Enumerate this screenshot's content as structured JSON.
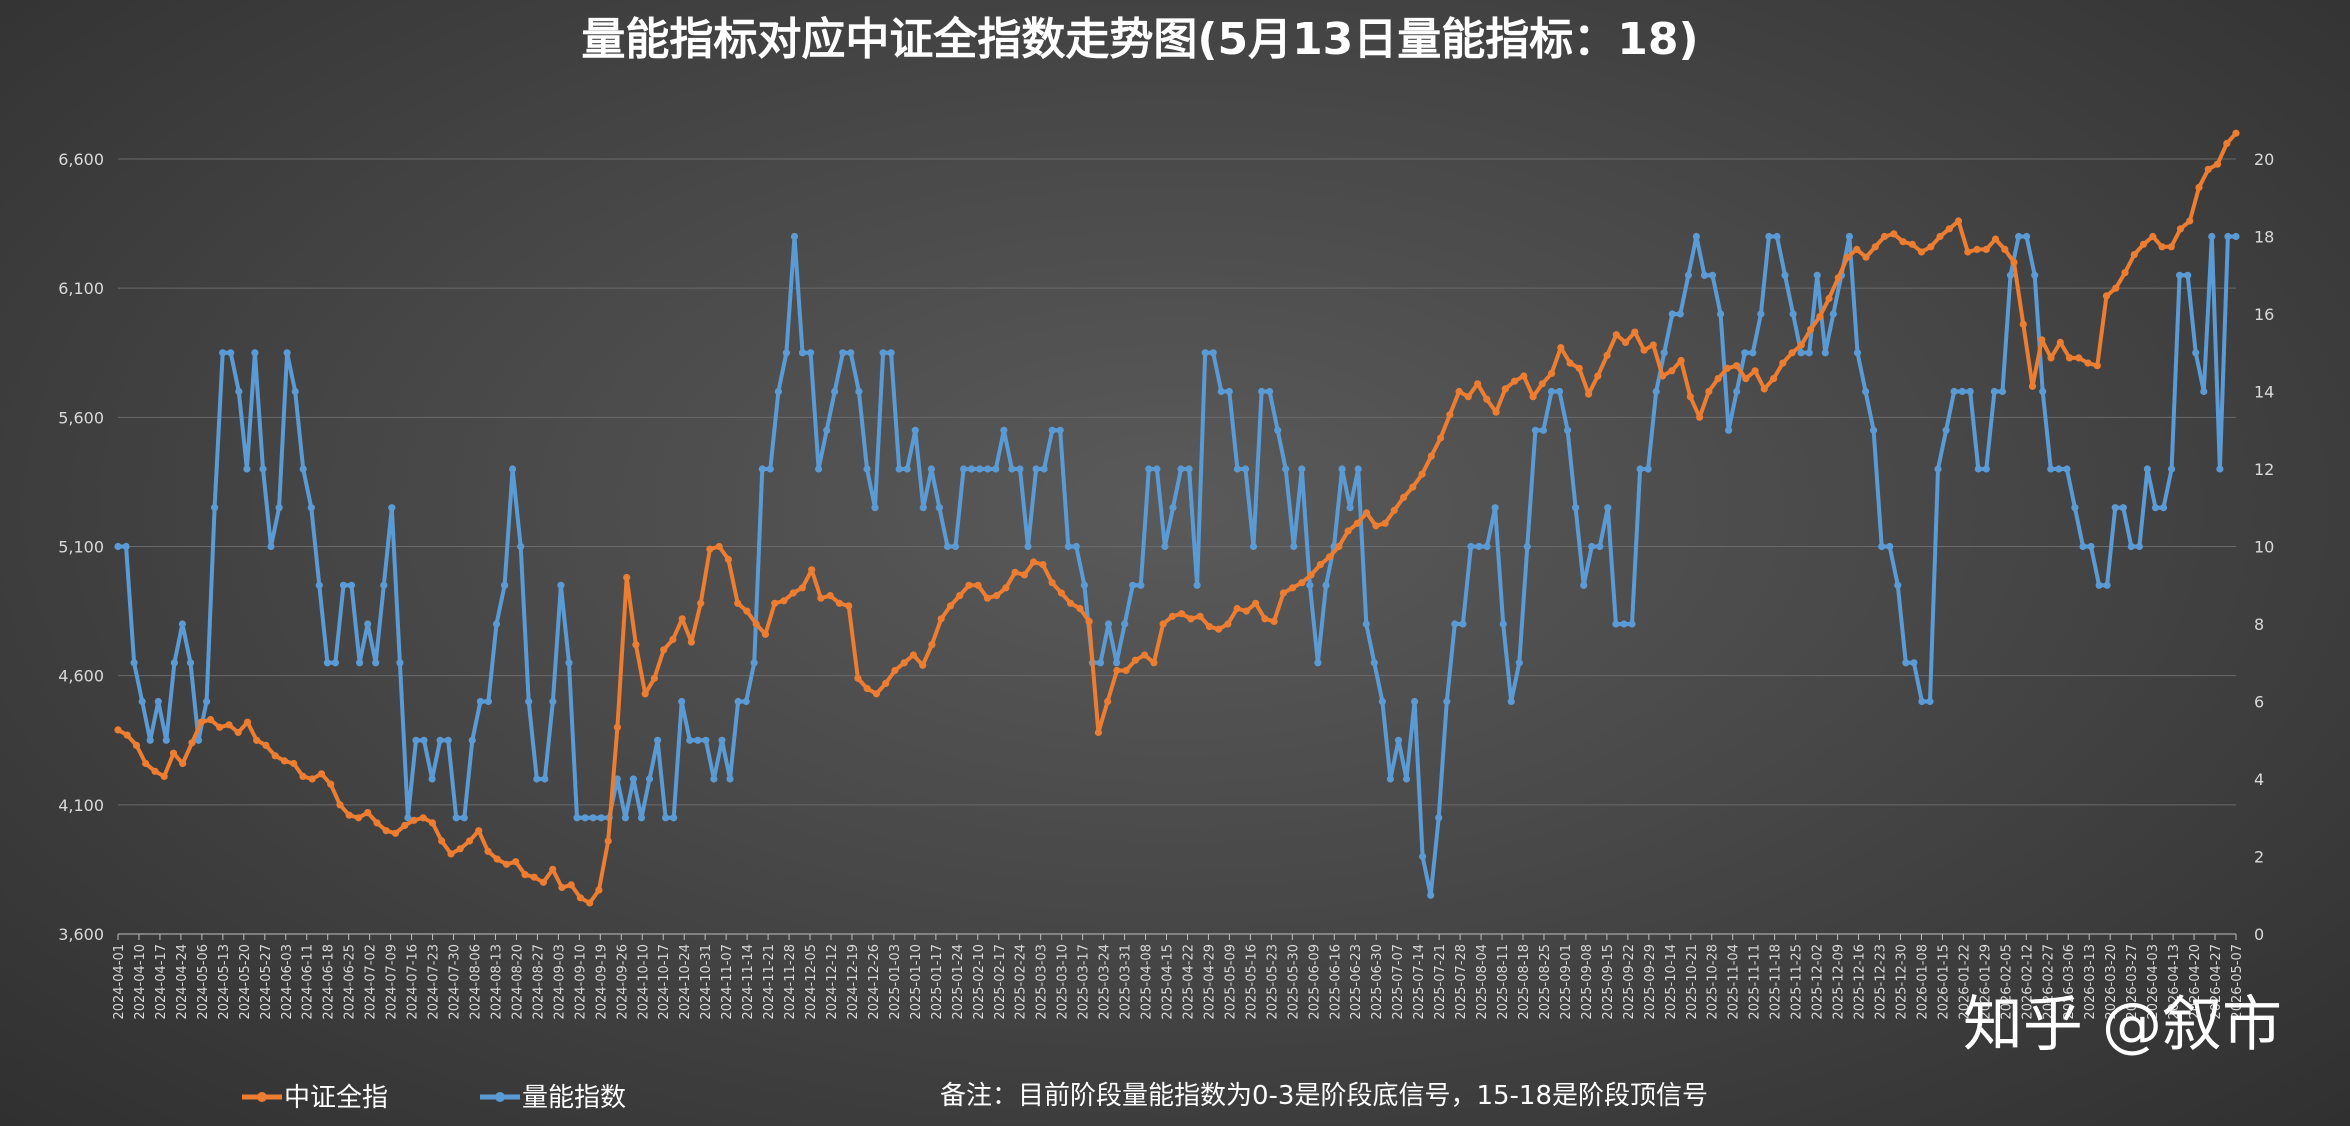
{
  "chart_data": {
    "type": "line",
    "title": "量能指标对应中证全指数走势图(5月13日量能指标：18)",
    "note": "备注：目前阶段量能指数为0-3是阶段底信号，15-18是阶段顶信号",
    "watermark": "知乎 @叙市",
    "legend_position": "bottom-left",
    "grid": true,
    "y_left": {
      "range": [
        3600,
        6600
      ],
      "ticks": [
        "3,600",
        "4,100",
        "4,600",
        "5,100",
        "5,600",
        "6,100",
        "6,600"
      ],
      "max": 6600,
      "min": 3600
    },
    "y_right": {
      "range": [
        0,
        20
      ],
      "ticks": [
        "0",
        "2",
        "4",
        "6",
        "8",
        "10",
        "12",
        "14",
        "16",
        "18",
        "20"
      ],
      "max": 20,
      "min": 0
    },
    "x_labels": [
      "2024-04-01",
      "2024-04-10",
      "2024-04-17",
      "2024-04-24",
      "2024-05-06",
      "2024-05-13",
      "2024-05-20",
      "2024-05-27",
      "2024-06-03",
      "2024-06-11",
      "2024-06-18",
      "2024-06-25",
      "2024-07-02",
      "2024-07-09",
      "2024-07-16",
      "2024-07-23",
      "2024-07-30",
      "2024-08-06",
      "2024-08-13",
      "2024-08-20",
      "2024-08-27",
      "2024-09-03",
      "2024-09-10",
      "2024-09-19",
      "2024-09-26",
      "2024-10-10",
      "2024-10-17",
      "2024-10-24",
      "2024-10-31",
      "2024-11-07",
      "2024-11-14",
      "2024-11-21",
      "2024-11-28",
      "2024-12-05",
      "2024-12-12",
      "2024-12-19",
      "2024-12-26",
      "2025-01-03",
      "2025-01-10",
      "2025-01-17",
      "2025-01-24",
      "2025-02-10",
      "2025-02-17",
      "2025-02-24",
      "2025-03-03",
      "2025-03-10",
      "2025-03-17",
      "2025-03-24",
      "2025-03-31",
      "2025-04-08",
      "2025-04-15",
      "2025-04-22",
      "2025-04-29",
      "2025-05-09",
      "2025-05-16",
      "2025-05-23",
      "2025-05-30",
      "2025-06-09",
      "2025-06-16",
      "2025-06-23",
      "2025-06-30",
      "2025-07-07",
      "2025-07-14",
      "2025-07-21",
      "2025-07-28",
      "2025-08-04",
      "2025-08-11",
      "2025-08-18",
      "2025-08-25",
      "2025-09-01",
      "2025-09-08",
      "2025-09-15",
      "2025-09-22",
      "2025-09-29",
      "2025-10-14",
      "2025-10-21",
      "2025-10-28",
      "2025-11-04",
      "2025-11-11",
      "2025-11-18",
      "2025-11-25",
      "2025-12-02",
      "2025-12-09",
      "2025-12-16",
      "2025-12-23",
      "2025-12-30",
      "2026-01-08",
      "2026-01-15",
      "2026-01-22",
      "2026-01-29",
      "2026-02-05",
      "2026-02-12",
      "2026-02-27",
      "2026-03-06",
      "2026-03-13",
      "2026-03-20",
      "2026-03-27",
      "2026-04-03",
      "2026-04-13",
      "2026-04-20",
      "2026-04-27",
      "2026-05-07"
    ],
    "series": [
      {
        "name": "中证全指",
        "axis": "left",
        "color": "#ed7d31",
        "values": [
          4390,
          4370,
          4330,
          4260,
          4230,
          4210,
          4300,
          4260,
          4340,
          4420,
          4430,
          4400,
          4410,
          4380,
          4420,
          4350,
          4330,
          4290,
          4270,
          4260,
          4210,
          4200,
          4220,
          4180,
          4100,
          4060,
          4050,
          4070,
          4030,
          4000,
          3990,
          4020,
          4040,
          4050,
          4030,
          3960,
          3910,
          3930,
          3960,
          4000,
          3920,
          3890,
          3870,
          3880,
          3830,
          3820,
          3800,
          3850,
          3780,
          3790,
          3740,
          3720,
          3770,
          3960,
          4400,
          4980,
          4720,
          4530,
          4590,
          4700,
          4740,
          4820,
          4730,
          4880,
          5090,
          5100,
          5050,
          4880,
          4850,
          4800,
          4760,
          4880,
          4890,
          4920,
          4940,
          5010,
          4900,
          4910,
          4880,
          4870,
          4590,
          4550,
          4530,
          4570,
          4620,
          4650,
          4680,
          4640,
          4720,
          4820,
          4870,
          4910,
          4950,
          4950,
          4900,
          4910,
          4940,
          5000,
          4990,
          5040,
          5030,
          4960,
          4920,
          4880,
          4860,
          4810,
          4380,
          4500,
          4620,
          4620,
          4660,
          4680,
          4650,
          4800,
          4830,
          4840,
          4820,
          4830,
          4790,
          4780,
          4800,
          4860,
          4850,
          4880,
          4820,
          4810,
          4920,
          4940,
          4960,
          4990,
          5030,
          5060,
          5100,
          5160,
          5190,
          5230,
          5180,
          5190,
          5240,
          5290,
          5330,
          5380,
          5450,
          5520,
          5610,
          5700,
          5680,
          5730,
          5670,
          5620,
          5710,
          5740,
          5760,
          5680,
          5730,
          5770,
          5870,
          5810,
          5790,
          5690,
          5760,
          5840,
          5920,
          5890,
          5930,
          5860,
          5880,
          5760,
          5780,
          5820,
          5680,
          5600,
          5700,
          5750,
          5790,
          5800,
          5750,
          5780,
          5710,
          5750,
          5810,
          5850,
          5880,
          5940,
          5990,
          6060,
          6140,
          6220,
          6250,
          6220,
          6260,
          6300,
          6310,
          6280,
          6270,
          6240,
          6260,
          6300,
          6330,
          6360,
          6240,
          6250,
          6250,
          6290,
          6250,
          6200,
          5960,
          5720,
          5900,
          5830,
          5890,
          5830,
          5830,
          5810,
          5800,
          6070,
          6100,
          6160,
          6230,
          6270,
          6300,
          6260,
          6260,
          6330,
          6360,
          6490,
          6560,
          6580,
          6660,
          6700
        ]
      },
      {
        "name": "量能指数",
        "axis": "right",
        "color": "#5b9bd5",
        "values": [
          10,
          10,
          7,
          6,
          5,
          6,
          5,
          7,
          8,
          7,
          5,
          6,
          11,
          15,
          15,
          14,
          12,
          15,
          12,
          10,
          11,
          15,
          14,
          12,
          11,
          9,
          7,
          7,
          9,
          9,
          7,
          8,
          7,
          9,
          11,
          7,
          3,
          5,
          5,
          4,
          5,
          5,
          3,
          3,
          5,
          6,
          6,
          8,
          9,
          12,
          10,
          6,
          4,
          4,
          6,
          9,
          7,
          3,
          3,
          3,
          3,
          3,
          4,
          3,
          4,
          3,
          4,
          5,
          3,
          3,
          6,
          5,
          5,
          5,
          4,
          5,
          4,
          6,
          6,
          7,
          12,
          12,
          14,
          15,
          18,
          15,
          15,
          12,
          13,
          14,
          15,
          15,
          14,
          12,
          11,
          15,
          15,
          12,
          12,
          13,
          11,
          12,
          11,
          10,
          10,
          12,
          12,
          12,
          12,
          12,
          13,
          12,
          12,
          10,
          12,
          12,
          13,
          13,
          10,
          10,
          9,
          7,
          7,
          8,
          7,
          8,
          9,
          9,
          12,
          12,
          10,
          11,
          12,
          12,
          9,
          15,
          15,
          14,
          14,
          12,
          12,
          10,
          14,
          14,
          13,
          12,
          10,
          12,
          9,
          7,
          9,
          10,
          12,
          11,
          12,
          8,
          7,
          6,
          4,
          5,
          4,
          6,
          2,
          1,
          3,
          6,
          8,
          8,
          10,
          10,
          10,
          11,
          8,
          6,
          7,
          10,
          13,
          13,
          14,
          14,
          13,
          11,
          9,
          10,
          10,
          11,
          8,
          8,
          8,
          12,
          12,
          14,
          15,
          16,
          16,
          17,
          18,
          17,
          17,
          16,
          13,
          14,
          15,
          15,
          16,
          18,
          18,
          17,
          16,
          15,
          15,
          17,
          15,
          16,
          17,
          18,
          15,
          14,
          13,
          10,
          10,
          9,
          7,
          7,
          6,
          6,
          12,
          13,
          14,
          14,
          14,
          12,
          12,
          14,
          14,
          17,
          18,
          18,
          17,
          14,
          12,
          12,
          12,
          11,
          10,
          10,
          9,
          9,
          11,
          11,
          10,
          10,
          12,
          11,
          11,
          12,
          17,
          17,
          15,
          14,
          18,
          12,
          18,
          18
        ]
      }
    ]
  }
}
